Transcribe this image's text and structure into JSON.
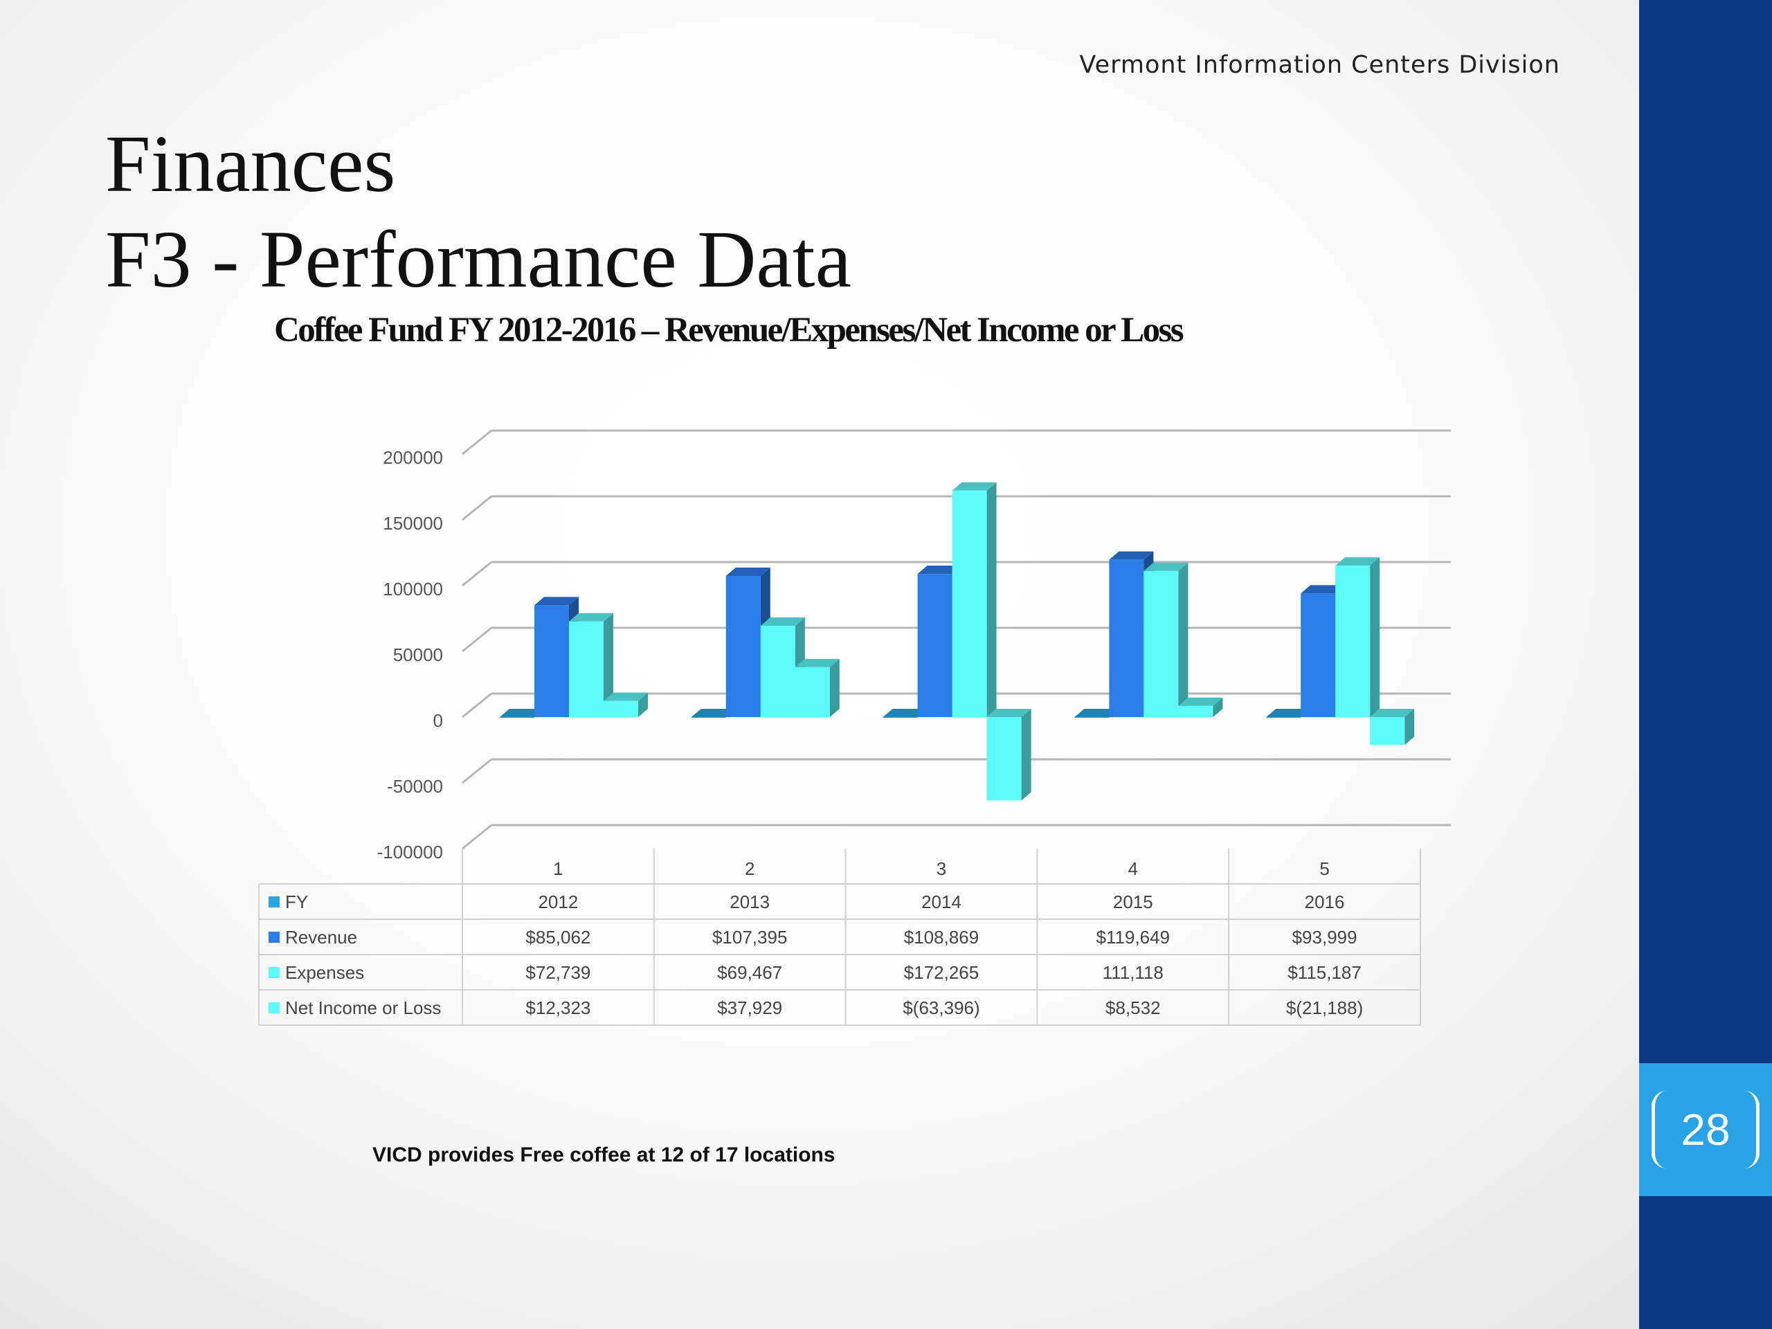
{
  "header": {
    "division": "Vermont Information Centers Division"
  },
  "slide": {
    "title_line1": "Finances",
    "title_line2": "F3 - Performance Data",
    "chart_title": "Coffee Fund FY 2012-2016 – Revenue/Expenses/Net Income or Loss",
    "note": "VICD provides Free coffee at 12 of 17 locations",
    "page_number": "28"
  },
  "colors": {
    "fy": "#29a7e0",
    "revenue": "#2b7de9",
    "expenses": "#5cfaf8",
    "net": "#5cfaf8",
    "right_bar": "#0b3c82",
    "page_box": "#2aa3e6"
  },
  "chart_data": {
    "type": "bar",
    "style": "3d-clustered-column-with-data-table",
    "categories": [
      "1",
      "2",
      "3",
      "4",
      "5"
    ],
    "y_ticks": [
      "200000",
      "150000",
      "100000",
      "50000",
      "0",
      "-50000",
      "-100000"
    ],
    "ylim": [
      -100000,
      200000
    ],
    "grid": true,
    "series": [
      {
        "name": "FY",
        "values": [
          2012,
          2013,
          2014,
          2015,
          2016
        ],
        "table": [
          "2012",
          "2013",
          "2014",
          "2015",
          "2016"
        ]
      },
      {
        "name": "Revenue",
        "values": [
          85062,
          107395,
          108869,
          119649,
          93999
        ],
        "table": [
          "$85,062",
          "$107,395",
          "$108,869",
          "$119,649",
          "$93,999"
        ]
      },
      {
        "name": "Expenses",
        "values": [
          72739,
          69467,
          172265,
          111118,
          115187
        ],
        "table": [
          "$72,739",
          "$69,467",
          "$172,265",
          "111,118",
          "$115,187"
        ]
      },
      {
        "name": "Net Income or Loss",
        "values": [
          12323,
          37929,
          -63396,
          8532,
          -21188
        ],
        "table": [
          "$12,323",
          "$37,929",
          "$(63,396)",
          "$8,532",
          "$(21,188)"
        ]
      }
    ]
  }
}
